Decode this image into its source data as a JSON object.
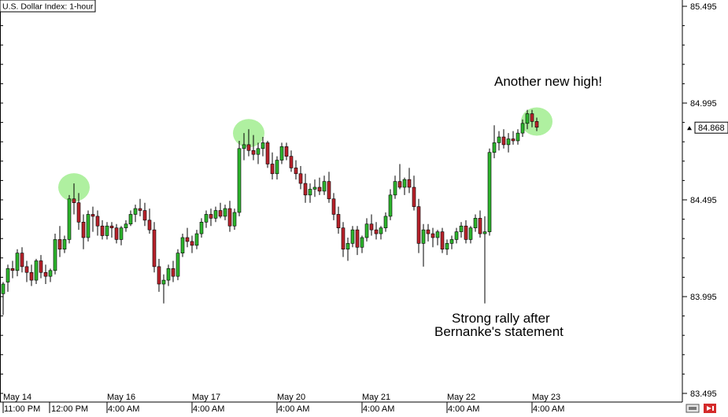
{
  "chart_data": {
    "type": "candlestick",
    "title": "U.S. Dollar Index: 1-hour",
    "y_axis": {
      "position": "right",
      "ticks": [
        83.495,
        83.995,
        84.495,
        84.995,
        85.495
      ],
      "tick_labels": [
        "83.495",
        "83.995",
        "84.495",
        "84.995",
        "85.495"
      ],
      "ylim": [
        83.495,
        85.495
      ]
    },
    "current_price": {
      "value": 84.868,
      "label": "84.868"
    },
    "x_axis": {
      "date_labels": [
        "May 14",
        "May 16",
        "May 17",
        "May 20",
        "May 21",
        "May 22",
        "May 23"
      ],
      "time_labels": [
        "11:00 PM",
        "12:00 PM",
        "4:00 AM",
        "4:00 AM",
        "4:00 AM",
        "4:00 AM",
        "4:00 AM",
        "4:00 AM"
      ]
    },
    "candles": [
      [
        84.01,
        84.07,
        83.9,
        84.06
      ],
      [
        84.07,
        84.16,
        84.02,
        84.14
      ],
      [
        84.14,
        84.18,
        84.09,
        84.13
      ],
      [
        84.13,
        84.24,
        84.1,
        84.22
      ],
      [
        84.22,
        84.25,
        84.12,
        84.15
      ],
      [
        84.15,
        84.18,
        84.07,
        84.12
      ],
      [
        84.12,
        84.16,
        84.05,
        84.08
      ],
      [
        84.08,
        84.19,
        84.06,
        84.18
      ],
      [
        84.18,
        84.21,
        84.09,
        84.12
      ],
      [
        84.12,
        84.16,
        84.06,
        84.1
      ],
      [
        84.1,
        84.14,
        84.07,
        84.13
      ],
      [
        84.13,
        84.32,
        84.11,
        84.29
      ],
      [
        84.29,
        84.36,
        84.2,
        84.24
      ],
      [
        84.24,
        84.31,
        84.22,
        84.29
      ],
      [
        84.29,
        84.52,
        84.27,
        84.5
      ],
      [
        84.5,
        84.58,
        84.42,
        84.48
      ],
      [
        84.48,
        84.53,
        84.34,
        84.38
      ],
      [
        84.38,
        84.42,
        84.24,
        84.3
      ],
      [
        84.3,
        84.44,
        84.28,
        84.42
      ],
      [
        84.42,
        84.46,
        84.33,
        84.41
      ],
      [
        84.41,
        84.44,
        84.31,
        84.36
      ],
      [
        84.36,
        84.39,
        84.29,
        84.31
      ],
      [
        84.31,
        84.38,
        84.29,
        84.36
      ],
      [
        84.36,
        84.38,
        84.3,
        84.35
      ],
      [
        84.35,
        84.37,
        84.27,
        84.29
      ],
      [
        84.29,
        84.36,
        84.26,
        84.35
      ],
      [
        84.35,
        84.39,
        84.33,
        84.37
      ],
      [
        84.37,
        84.44,
        84.36,
        84.42
      ],
      [
        84.42,
        84.47,
        84.38,
        84.45
      ],
      [
        84.45,
        84.5,
        84.41,
        84.44
      ],
      [
        84.44,
        84.48,
        84.36,
        84.39
      ],
      [
        84.39,
        84.45,
        84.32,
        84.34
      ],
      [
        84.34,
        84.38,
        84.12,
        84.15
      ],
      [
        84.15,
        84.19,
        84.02,
        84.06
      ],
      [
        84.06,
        84.11,
        83.96,
        84.08
      ],
      [
        84.08,
        84.16,
        84.05,
        84.14
      ],
      [
        84.14,
        84.18,
        84.07,
        84.1
      ],
      [
        84.1,
        84.24,
        84.08,
        84.22
      ],
      [
        84.22,
        84.32,
        84.2,
        84.3
      ],
      [
        84.3,
        84.35,
        84.25,
        84.28
      ],
      [
        84.28,
        84.31,
        84.22,
        84.26
      ],
      [
        84.26,
        84.34,
        84.24,
        84.32
      ],
      [
        84.32,
        84.4,
        84.3,
        84.38
      ],
      [
        84.38,
        84.44,
        84.35,
        84.42
      ],
      [
        84.42,
        84.45,
        84.36,
        84.4
      ],
      [
        84.4,
        84.46,
        84.38,
        84.44
      ],
      [
        84.44,
        84.48,
        84.4,
        84.41
      ],
      [
        84.41,
        84.47,
        84.39,
        84.45
      ],
      [
        84.45,
        84.49,
        84.33,
        84.36
      ],
      [
        84.36,
        84.45,
        84.34,
        84.43
      ],
      [
        84.43,
        84.8,
        84.41,
        84.76
      ],
      [
        84.76,
        84.84,
        84.7,
        84.78
      ],
      [
        84.78,
        84.86,
        84.72,
        84.75
      ],
      [
        84.75,
        84.83,
        84.7,
        84.73
      ],
      [
        84.73,
        84.79,
        84.68,
        84.76
      ],
      [
        84.76,
        84.82,
        84.72,
        84.79
      ],
      [
        84.79,
        84.8,
        84.66,
        84.68
      ],
      [
        84.68,
        84.74,
        84.6,
        84.63
      ],
      [
        84.63,
        84.72,
        84.6,
        84.7
      ],
      [
        84.7,
        84.79,
        84.68,
        84.77
      ],
      [
        84.77,
        84.79,
        84.7,
        84.72
      ],
      [
        84.72,
        84.75,
        84.64,
        84.66
      ],
      [
        84.66,
        84.7,
        84.6,
        84.63
      ],
      [
        84.63,
        84.67,
        84.55,
        84.58
      ],
      [
        84.58,
        84.63,
        84.48,
        84.52
      ],
      [
        84.52,
        84.58,
        84.48,
        84.55
      ],
      [
        84.55,
        84.6,
        84.51,
        84.56
      ],
      [
        84.56,
        84.61,
        84.52,
        84.54
      ],
      [
        84.54,
        84.62,
        84.52,
        84.59
      ],
      [
        84.59,
        84.64,
        84.48,
        84.5
      ],
      [
        84.5,
        84.53,
        84.39,
        84.42
      ],
      [
        84.42,
        84.46,
        84.32,
        84.35
      ],
      [
        84.35,
        84.38,
        84.2,
        84.24
      ],
      [
        84.24,
        84.3,
        84.18,
        84.27
      ],
      [
        84.27,
        84.36,
        84.25,
        84.34
      ],
      [
        84.34,
        84.36,
        84.21,
        84.25
      ],
      [
        84.25,
        84.31,
        84.22,
        84.3
      ],
      [
        84.3,
        84.4,
        84.28,
        84.37
      ],
      [
        84.37,
        84.42,
        84.31,
        84.34
      ],
      [
        84.34,
        84.38,
        84.29,
        84.32
      ],
      [
        84.32,
        84.36,
        84.29,
        84.35
      ],
      [
        84.35,
        84.43,
        84.33,
        84.41
      ],
      [
        84.41,
        84.55,
        84.39,
        84.52
      ],
      [
        84.52,
        84.62,
        84.5,
        84.59
      ],
      [
        84.59,
        84.68,
        84.55,
        84.56
      ],
      [
        84.56,
        84.61,
        84.52,
        84.6
      ],
      [
        84.6,
        84.66,
        84.53,
        84.56
      ],
      [
        84.56,
        84.62,
        84.44,
        84.46
      ],
      [
        84.46,
        84.5,
        84.22,
        84.27
      ],
      [
        84.27,
        84.37,
        84.15,
        84.34
      ],
      [
        84.34,
        84.37,
        84.28,
        84.32
      ],
      [
        84.32,
        84.35,
        84.25,
        84.3
      ],
      [
        84.3,
        84.34,
        84.26,
        84.33
      ],
      [
        84.33,
        84.35,
        84.22,
        84.24
      ],
      [
        84.24,
        84.29,
        84.21,
        84.27
      ],
      [
        84.27,
        84.31,
        84.24,
        84.29
      ],
      [
        84.29,
        84.35,
        84.27,
        84.33
      ],
      [
        84.33,
        84.38,
        84.3,
        84.36
      ],
      [
        84.36,
        84.39,
        84.27,
        84.29
      ],
      [
        84.29,
        84.36,
        84.27,
        84.35
      ],
      [
        84.35,
        84.42,
        84.33,
        84.4
      ],
      [
        84.4,
        84.44,
        84.3,
        84.32
      ],
      [
        84.32,
        84.41,
        83.96,
        84.33
      ],
      [
        84.33,
        84.76,
        84.31,
        84.74
      ],
      [
        84.74,
        84.88,
        84.71,
        84.79
      ],
      [
        84.79,
        84.85,
        84.75,
        84.82
      ],
      [
        84.82,
        84.86,
        84.76,
        84.78
      ],
      [
        84.78,
        84.84,
        84.74,
        84.81
      ],
      [
        84.81,
        84.85,
        84.78,
        84.8
      ],
      [
        84.8,
        84.86,
        84.78,
        84.84
      ],
      [
        84.84,
        84.91,
        84.82,
        84.89
      ],
      [
        84.89,
        84.96,
        84.86,
        84.94
      ],
      [
        84.94,
        84.96,
        84.87,
        84.9
      ],
      [
        84.9,
        84.92,
        84.85,
        84.87
      ]
    ],
    "highlights": [
      {
        "candle": 15
      },
      {
        "candle": 52
      },
      {
        "candle": 113
      }
    ],
    "annotations": [
      {
        "text": "Another new high!"
      },
      {
        "text_lines": [
          "Strong rally after",
          "Bernanke's statement"
        ]
      }
    ],
    "colors": {
      "up": "#2db52d",
      "down": "#b8222b",
      "wick": "#000000",
      "highlight": "#a6ee96",
      "background": "#ffffff"
    }
  },
  "toolbar": {
    "scroll_icon": "scroll-icon",
    "exit_icon": "exit-icon"
  }
}
